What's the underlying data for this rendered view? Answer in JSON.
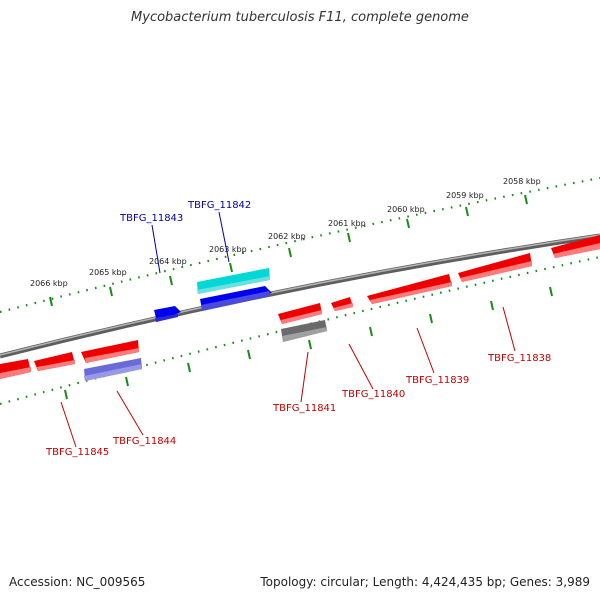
{
  "title": "Mycobacterium tuberculosis F11, complete genome",
  "accession": "Accession: NC_009565",
  "summary": "Topology: circular; Length: 4,424,435 bp; Genes: 3,989",
  "colors": {
    "backbone": "#808080",
    "ruler": "#1a8a1a",
    "forward_gene": "#0000ee",
    "reverse_gene": "#ee0000",
    "highlight_gene": "#00e5e5",
    "pseudo_gene": "#6a6ad8",
    "other_gene": "#707070",
    "label_forward": "#00009a",
    "label_reverse": "#c00000"
  },
  "ruler_labels": [
    "2058 kbp",
    "2059 kbp",
    "2060 kbp",
    "2061 kbp",
    "2062 kbp",
    "2063 kbp",
    "2064 kbp",
    "2065 kbp",
    "2066 kbp"
  ],
  "gene_labels": {
    "forward": [
      "TBFG_11843",
      "TBFG_11842"
    ],
    "reverse": [
      "TBFG_11838",
      "TBFG_11839",
      "TBFG_11840",
      "TBFG_11841",
      "TBFG_11844",
      "TBFG_11845"
    ]
  }
}
